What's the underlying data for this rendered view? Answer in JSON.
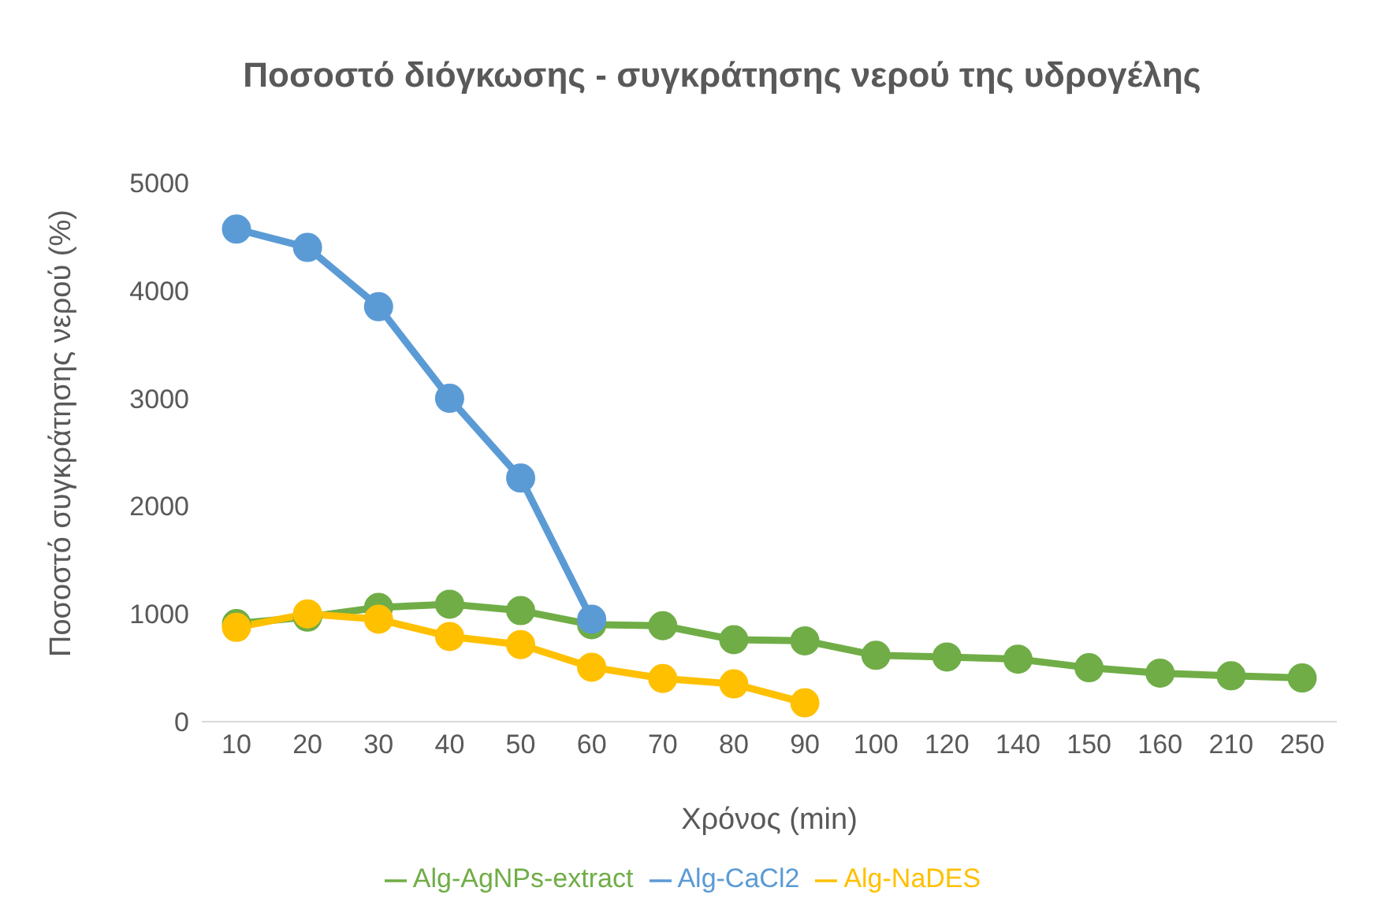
{
  "chart_data": {
    "type": "line",
    "title": "Ποσοστό διόγκωσης - συγκράτησης νερού της υδρογέλης",
    "xlabel": "Χρόνος (min)",
    "ylabel": "Ποσοστό συγκράτησης νερού (%)",
    "categories": [
      "10",
      "20",
      "30",
      "40",
      "50",
      "60",
      "70",
      "80",
      "90",
      "100",
      "120",
      "140",
      "150",
      "160",
      "210",
      "250"
    ],
    "series": [
      {
        "name": "Alg-AgNPs-extract",
        "color": "#70ad47",
        "values": [
          910,
          970,
          1060,
          1090,
          1030,
          900,
          890,
          760,
          750,
          615,
          600,
          580,
          500,
          450,
          425,
          405
        ]
      },
      {
        "name": "Alg-CaCl2",
        "color": "#5b9bd5",
        "values": [
          4570,
          4400,
          3850,
          3000,
          2260,
          950,
          null,
          null,
          null,
          null,
          null,
          null,
          null,
          null,
          null,
          null
        ]
      },
      {
        "name": "Alg-NaDES",
        "color": "#ffc000",
        "values": [
          875,
          1000,
          950,
          790,
          715,
          505,
          400,
          350,
          175,
          null,
          null,
          null,
          null,
          null,
          null,
          null
        ]
      }
    ],
    "ylim": [
      0,
      5000
    ],
    "yticks": [
      0,
      1000,
      2000,
      3000,
      4000,
      5000
    ],
    "grid": false,
    "legend": "bottom",
    "marker": "circle",
    "line_style": "solid"
  }
}
